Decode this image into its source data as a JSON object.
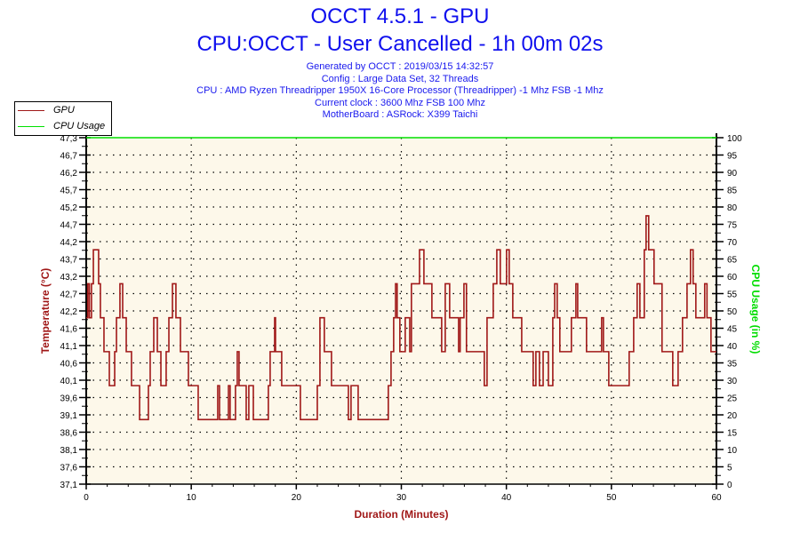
{
  "header": {
    "title": "OCCT 4.5.1 - GPU",
    "subtitle": "CPU:OCCT - User Cancelled - 1h 00m 02s",
    "info_lines": [
      "Generated by OCCT : 2019/03/15 14:32:57",
      "Config : Large Data Set, 32 Threads",
      "CPU : AMD Ryzen Threadripper 1950X 16-Core Processor (Threadripper) -1 Mhz FSB -1 Mhz",
      "Current clock : 3600 Mhz FSB 100 Mhz",
      "MotherBoard : ASRock: X399 Taichi"
    ]
  },
  "colors": {
    "title": "#1010ee",
    "gpu": "#a01818",
    "cpu": "#00e000",
    "plot_bg": "#fdf8ea",
    "axis_label_left": "#a01818",
    "axis_label_right": "#00dd00"
  },
  "chart_data": {
    "type": "line",
    "title": "OCCT 4.5.1 - GPU",
    "xlabel": "Duration (Minutes)",
    "ylabel": "Temperature (°C)",
    "y2label": "CPU Usage (in %)",
    "xlim": [
      0,
      60
    ],
    "ylim": [
      37.1,
      47.3
    ],
    "y2lim": [
      0,
      100
    ],
    "grid": true,
    "legend_placement": "top-left",
    "x_ticks": [
      "0",
      "10",
      "20",
      "30",
      "40",
      "50",
      "60"
    ],
    "y_ticks": [
      "37,1",
      "37,6",
      "38,1",
      "38,6",
      "39,1",
      "39,6",
      "40,1",
      "40,6",
      "41,1",
      "41,6",
      "42,2",
      "42,7",
      "43,2",
      "43,7",
      "44,2",
      "44,7",
      "45,2",
      "45,7",
      "46,2",
      "46,7",
      "47,3"
    ],
    "y2_ticks": [
      "0",
      "5",
      "10",
      "15",
      "20",
      "25",
      "30",
      "35",
      "40",
      "45",
      "50",
      "55",
      "60",
      "65",
      "70",
      "75",
      "80",
      "85",
      "90",
      "95",
      "100"
    ],
    "series": [
      {
        "name": "GPU",
        "axis": "left",
        "step": true,
        "points": [
          [
            0,
            42
          ],
          [
            0.15,
            43
          ],
          [
            0.3,
            42
          ],
          [
            0.5,
            43
          ],
          [
            0.68,
            44
          ],
          [
            1.18,
            43
          ],
          [
            1.35,
            42
          ],
          [
            1.69,
            41
          ],
          [
            2.2,
            40
          ],
          [
            2.71,
            41
          ],
          [
            2.88,
            42
          ],
          [
            3.21,
            43
          ],
          [
            3.47,
            42
          ],
          [
            3.81,
            41
          ],
          [
            4.31,
            40
          ],
          [
            5.08,
            39
          ],
          [
            5.92,
            40
          ],
          [
            6.09,
            41
          ],
          [
            6.43,
            42
          ],
          [
            6.77,
            41
          ],
          [
            7.11,
            40
          ],
          [
            7.61,
            41
          ],
          [
            7.87,
            42
          ],
          [
            8.21,
            43
          ],
          [
            8.54,
            42
          ],
          [
            8.97,
            41
          ],
          [
            9.73,
            40
          ],
          [
            10.66,
            39
          ],
          [
            12.52,
            40
          ],
          [
            12.69,
            39
          ],
          [
            13.54,
            40
          ],
          [
            13.7,
            39
          ],
          [
            14.21,
            40
          ],
          [
            14.38,
            41
          ],
          [
            14.55,
            40
          ],
          [
            15.23,
            39
          ],
          [
            15.48,
            40
          ],
          [
            15.91,
            39
          ],
          [
            17.34,
            40
          ],
          [
            17.51,
            41
          ],
          [
            17.94,
            42
          ],
          [
            18.02,
            41
          ],
          [
            18.61,
            40
          ],
          [
            20.39,
            39
          ],
          [
            22.0,
            40
          ],
          [
            22.25,
            42
          ],
          [
            22.67,
            41
          ],
          [
            23.35,
            40
          ],
          [
            24.96,
            39
          ],
          [
            25.21,
            40
          ],
          [
            25.89,
            39
          ],
          [
            28.76,
            40
          ],
          [
            29.02,
            41
          ],
          [
            29.27,
            42
          ],
          [
            29.45,
            43
          ],
          [
            29.6,
            42
          ],
          [
            29.86,
            41
          ],
          [
            30.37,
            42
          ],
          [
            30.8,
            41
          ],
          [
            30.96,
            43
          ],
          [
            31.73,
            44
          ],
          [
            32.15,
            43
          ],
          [
            32.91,
            42
          ],
          [
            33.84,
            41
          ],
          [
            34.18,
            43
          ],
          [
            34.6,
            42
          ],
          [
            35.45,
            41
          ],
          [
            35.6,
            42
          ],
          [
            35.96,
            43
          ],
          [
            36.2,
            41
          ],
          [
            37.9,
            40
          ],
          [
            38.16,
            42
          ],
          [
            38.75,
            43
          ],
          [
            39.09,
            44
          ],
          [
            39.42,
            43
          ],
          [
            40.02,
            44
          ],
          [
            40.27,
            43
          ],
          [
            40.61,
            42
          ],
          [
            41.46,
            41
          ],
          [
            42.55,
            40
          ],
          [
            42.81,
            41
          ],
          [
            43.15,
            40
          ],
          [
            43.5,
            41
          ],
          [
            44.0,
            40
          ],
          [
            44.42,
            42
          ],
          [
            44.6,
            43
          ],
          [
            44.84,
            42
          ],
          [
            45.09,
            41
          ],
          [
            46.19,
            42
          ],
          [
            46.62,
            43
          ],
          [
            46.79,
            42
          ],
          [
            47.63,
            41
          ],
          [
            49.07,
            42
          ],
          [
            49.24,
            41
          ],
          [
            49.75,
            40
          ],
          [
            51.69,
            41
          ],
          [
            52.12,
            42
          ],
          [
            52.45,
            43
          ],
          [
            52.71,
            42
          ],
          [
            53.13,
            44
          ],
          [
            53.3,
            45
          ],
          [
            53.55,
            44
          ],
          [
            54.06,
            43
          ],
          [
            54.82,
            41
          ],
          [
            55.84,
            40
          ],
          [
            56.35,
            41
          ],
          [
            56.77,
            42
          ],
          [
            57.2,
            43
          ],
          [
            57.53,
            44
          ],
          [
            57.78,
            43
          ],
          [
            58.04,
            42
          ],
          [
            58.88,
            43
          ],
          [
            59.1,
            42
          ],
          [
            59.48,
            41
          ],
          [
            60,
            41
          ]
        ]
      },
      {
        "name": "CPU Usage",
        "axis": "right",
        "step": true,
        "points": [
          [
            0,
            100
          ],
          [
            60,
            100
          ]
        ]
      }
    ]
  }
}
